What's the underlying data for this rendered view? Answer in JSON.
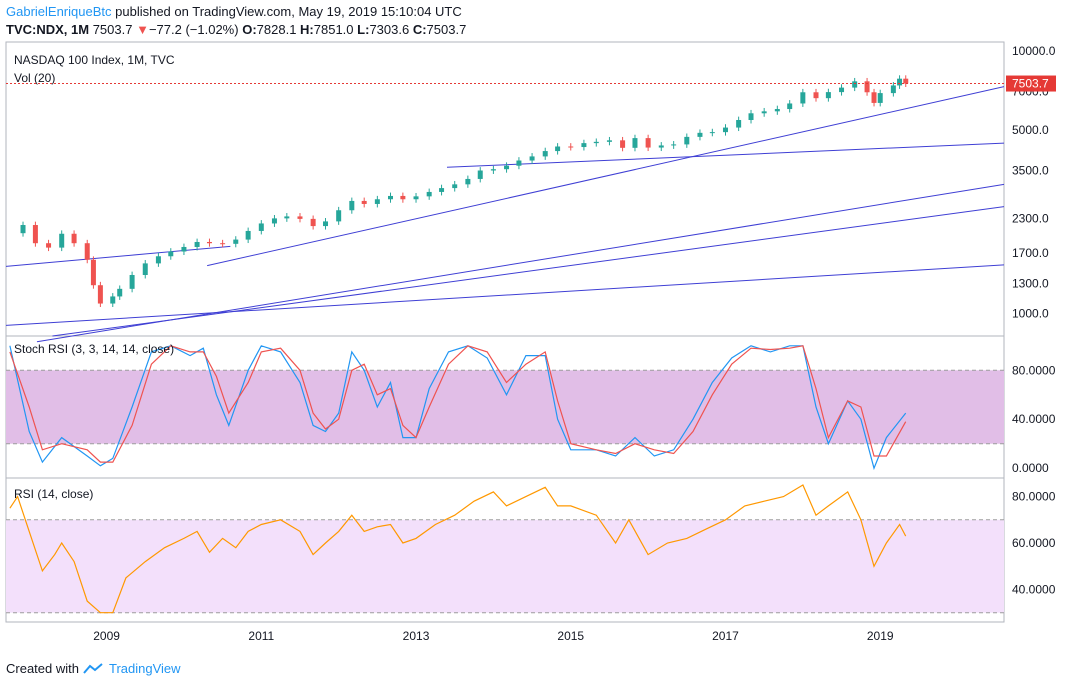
{
  "header": {
    "author": "GabrielEnriqueBtc",
    "published": "published on TradingView.com, May 19, 2019 15:10:04 UTC",
    "symbol": "TVC:NDX, 1M",
    "last": "7503.7",
    "change_icon": "triangle-down-icon",
    "change": "−77.2 (−1.02%)",
    "o_label": "O:",
    "o": "7828.1",
    "h_label": "H:",
    "h": "7851.0",
    "l_label": "L:",
    "l": "7303.6",
    "c_label": "C:",
    "c": "7503.7"
  },
  "footer": {
    "text": "Created with",
    "brand": "TradingView",
    "logo_icon": "tradingview-logo-icon"
  },
  "colors": {
    "up": "#26a69a",
    "down": "#ef5350",
    "trend": "#3f3fd4",
    "stoch_k": "#2196f3",
    "stoch_d": "#ef5350",
    "rsi": "#ff9800",
    "band_stoch": "#e1bee7",
    "band_rsi": "#f3e0fb",
    "price_line": "#e53935"
  },
  "chart_data": [
    {
      "type": "candlestick",
      "title": "NASDAQ 100 Index, 1M, TVC",
      "indicator_label": "Vol (20)",
      "scale": "log",
      "y_ticks": [
        "1000.0",
        "1300.0",
        "1700.0",
        "2300.0",
        "3500.0",
        "5000.0",
        "7000.0",
        "10000.0"
      ],
      "y_tick_values": [
        1000,
        1300,
        1700,
        2300,
        3500,
        5000,
        7000,
        10000
      ],
      "last_price_label": "7503.7",
      "last_price": 7503.7,
      "x_ticks": [
        "2009",
        "2011",
        "2013",
        "2015",
        "2017",
        "2019"
      ],
      "x_tick_values": [
        2009,
        2011,
        2013,
        2015,
        2017,
        2019
      ],
      "x_range": [
        2007.7,
        2020.6
      ],
      "y_range": [
        820,
        10800
      ],
      "monthly_close": [
        {
          "t": 2007.75,
          "v": 2020
        },
        {
          "t": 2007.92,
          "v": 2170
        },
        {
          "t": 2008.08,
          "v": 1850
        },
        {
          "t": 2008.25,
          "v": 1780
        },
        {
          "t": 2008.42,
          "v": 2010
        },
        {
          "t": 2008.58,
          "v": 1850
        },
        {
          "t": 2008.75,
          "v": 1600
        },
        {
          "t": 2008.83,
          "v": 1280
        },
        {
          "t": 2008.92,
          "v": 1090
        },
        {
          "t": 2009.08,
          "v": 1160
        },
        {
          "t": 2009.17,
          "v": 1240
        },
        {
          "t": 2009.33,
          "v": 1400
        },
        {
          "t": 2009.5,
          "v": 1550
        },
        {
          "t": 2009.67,
          "v": 1650
        },
        {
          "t": 2009.83,
          "v": 1720
        },
        {
          "t": 2010.0,
          "v": 1790
        },
        {
          "t": 2010.17,
          "v": 1870
        },
        {
          "t": 2010.33,
          "v": 1850
        },
        {
          "t": 2010.5,
          "v": 1840
        },
        {
          "t": 2010.67,
          "v": 1910
        },
        {
          "t": 2010.83,
          "v": 2060
        },
        {
          "t": 2011.0,
          "v": 2200
        },
        {
          "t": 2011.17,
          "v": 2300
        },
        {
          "t": 2011.33,
          "v": 2340
        },
        {
          "t": 2011.5,
          "v": 2290
        },
        {
          "t": 2011.67,
          "v": 2150
        },
        {
          "t": 2011.83,
          "v": 2240
        },
        {
          "t": 2012.0,
          "v": 2470
        },
        {
          "t": 2012.17,
          "v": 2680
        },
        {
          "t": 2012.33,
          "v": 2610
        },
        {
          "t": 2012.5,
          "v": 2720
        },
        {
          "t": 2012.67,
          "v": 2800
        },
        {
          "t": 2012.83,
          "v": 2720
        },
        {
          "t": 2013.0,
          "v": 2790
        },
        {
          "t": 2013.17,
          "v": 2900
        },
        {
          "t": 2013.33,
          "v": 3000
        },
        {
          "t": 2013.5,
          "v": 3100
        },
        {
          "t": 2013.67,
          "v": 3250
        },
        {
          "t": 2013.83,
          "v": 3500
        },
        {
          "t": 2014.0,
          "v": 3540
        },
        {
          "t": 2014.17,
          "v": 3650
        },
        {
          "t": 2014.33,
          "v": 3820
        },
        {
          "t": 2014.5,
          "v": 3960
        },
        {
          "t": 2014.67,
          "v": 4150
        },
        {
          "t": 2014.83,
          "v": 4320
        },
        {
          "t": 2015.0,
          "v": 4300
        },
        {
          "t": 2015.17,
          "v": 4450
        },
        {
          "t": 2015.33,
          "v": 4500
        },
        {
          "t": 2015.5,
          "v": 4560
        },
        {
          "t": 2015.67,
          "v": 4270
        },
        {
          "t": 2015.83,
          "v": 4650
        },
        {
          "t": 2016.0,
          "v": 4280
        },
        {
          "t": 2016.17,
          "v": 4360
        },
        {
          "t": 2016.33,
          "v": 4400
        },
        {
          "t": 2016.5,
          "v": 4700
        },
        {
          "t": 2016.67,
          "v": 4870
        },
        {
          "t": 2016.83,
          "v": 4900
        },
        {
          "t": 2017.0,
          "v": 5100
        },
        {
          "t": 2017.17,
          "v": 5450
        },
        {
          "t": 2017.33,
          "v": 5780
        },
        {
          "t": 2017.5,
          "v": 5880
        },
        {
          "t": 2017.67,
          "v": 6000
        },
        {
          "t": 2017.83,
          "v": 6300
        },
        {
          "t": 2018.0,
          "v": 6950
        },
        {
          "t": 2018.17,
          "v": 6600
        },
        {
          "t": 2018.33,
          "v": 6960
        },
        {
          "t": 2018.5,
          "v": 7240
        },
        {
          "t": 2018.67,
          "v": 7650
        },
        {
          "t": 2018.83,
          "v": 6950
        },
        {
          "t": 2018.92,
          "v": 6330
        },
        {
          "t": 2019.0,
          "v": 6900
        },
        {
          "t": 2019.17,
          "v": 7380
        },
        {
          "t": 2019.25,
          "v": 7830
        },
        {
          "t": 2019.33,
          "v": 7504
        }
      ]
    },
    {
      "type": "line",
      "title": "Stoch RSI (3, 3, 14, 14, close)",
      "y_ticks": [
        "0.0000",
        "40.0000",
        "80.0000"
      ],
      "y_tick_values": [
        0,
        40,
        80
      ],
      "band": [
        20,
        80
      ],
      "y_range": [
        -8,
        108
      ],
      "series": [
        {
          "key": "k",
          "points": [
            [
              2007.75,
              100
            ],
            [
              2008.0,
              30
            ],
            [
              2008.17,
              5
            ],
            [
              2008.42,
              25
            ],
            [
              2008.75,
              10
            ],
            [
              2008.92,
              2
            ],
            [
              2009.08,
              8
            ],
            [
              2009.33,
              50
            ],
            [
              2009.58,
              95
            ],
            [
              2009.83,
              100
            ],
            [
              2010.08,
              92
            ],
            [
              2010.25,
              98
            ],
            [
              2010.42,
              60
            ],
            [
              2010.58,
              35
            ],
            [
              2010.83,
              80
            ],
            [
              2011.0,
              100
            ],
            [
              2011.25,
              95
            ],
            [
              2011.5,
              70
            ],
            [
              2011.67,
              35
            ],
            [
              2011.83,
              30
            ],
            [
              2012.0,
              45
            ],
            [
              2012.17,
              95
            ],
            [
              2012.33,
              80
            ],
            [
              2012.5,
              50
            ],
            [
              2012.67,
              70
            ],
            [
              2012.83,
              25
            ],
            [
              2013.0,
              25
            ],
            [
              2013.17,
              65
            ],
            [
              2013.42,
              95
            ],
            [
              2013.67,
              100
            ],
            [
              2013.92,
              90
            ],
            [
              2014.17,
              60
            ],
            [
              2014.42,
              92
            ],
            [
              2014.67,
              92
            ],
            [
              2014.83,
              40
            ],
            [
              2015.0,
              15
            ],
            [
              2015.33,
              15
            ],
            [
              2015.58,
              10
            ],
            [
              2015.83,
              25
            ],
            [
              2016.08,
              10
            ],
            [
              2016.33,
              15
            ],
            [
              2016.58,
              40
            ],
            [
              2016.83,
              70
            ],
            [
              2017.08,
              90
            ],
            [
              2017.33,
              100
            ],
            [
              2017.58,
              95
            ],
            [
              2017.83,
              100
            ],
            [
              2018.0,
              100
            ],
            [
              2018.17,
              50
            ],
            [
              2018.33,
              20
            ],
            [
              2018.58,
              55
            ],
            [
              2018.75,
              40
            ],
            [
              2018.92,
              0
            ],
            [
              2019.08,
              25
            ],
            [
              2019.33,
              45
            ]
          ]
        },
        {
          "key": "d",
          "points": [
            [
              2007.75,
              95
            ],
            [
              2008.0,
              50
            ],
            [
              2008.17,
              15
            ],
            [
              2008.42,
              20
            ],
            [
              2008.75,
              15
            ],
            [
              2008.92,
              5
            ],
            [
              2009.08,
              5
            ],
            [
              2009.33,
              35
            ],
            [
              2009.58,
              85
            ],
            [
              2009.83,
              100
            ],
            [
              2010.08,
              95
            ],
            [
              2010.25,
              95
            ],
            [
              2010.42,
              75
            ],
            [
              2010.58,
              45
            ],
            [
              2010.83,
              70
            ],
            [
              2011.0,
              95
            ],
            [
              2011.25,
              98
            ],
            [
              2011.5,
              80
            ],
            [
              2011.67,
              45
            ],
            [
              2011.83,
              32
            ],
            [
              2012.0,
              40
            ],
            [
              2012.17,
              80
            ],
            [
              2012.33,
              85
            ],
            [
              2012.5,
              60
            ],
            [
              2012.67,
              65
            ],
            [
              2012.83,
              35
            ],
            [
              2013.0,
              25
            ],
            [
              2013.17,
              50
            ],
            [
              2013.42,
              85
            ],
            [
              2013.67,
              100
            ],
            [
              2013.92,
              95
            ],
            [
              2014.17,
              70
            ],
            [
              2014.42,
              85
            ],
            [
              2014.67,
              95
            ],
            [
              2014.83,
              55
            ],
            [
              2015.0,
              20
            ],
            [
              2015.33,
              15
            ],
            [
              2015.58,
              12
            ],
            [
              2015.83,
              20
            ],
            [
              2016.08,
              15
            ],
            [
              2016.33,
              12
            ],
            [
              2016.58,
              30
            ],
            [
              2016.83,
              60
            ],
            [
              2017.08,
              85
            ],
            [
              2017.33,
              98
            ],
            [
              2017.58,
              97
            ],
            [
              2017.83,
              98
            ],
            [
              2018.0,
              100
            ],
            [
              2018.17,
              65
            ],
            [
              2018.33,
              25
            ],
            [
              2018.58,
              55
            ],
            [
              2018.75,
              50
            ],
            [
              2018.92,
              10
            ],
            [
              2019.08,
              10
            ],
            [
              2019.33,
              38
            ]
          ]
        }
      ]
    },
    {
      "type": "line",
      "title": "RSI (14, close)",
      "y_ticks": [
        "40.0000",
        "60.0000",
        "80.0000"
      ],
      "y_tick_values": [
        40,
        60,
        80
      ],
      "band": [
        30,
        70
      ],
      "y_range": [
        26,
        88
      ],
      "series": [
        {
          "key": "rsi",
          "points": [
            [
              2007.75,
              75
            ],
            [
              2007.85,
              80
            ],
            [
              2008.0,
              65
            ],
            [
              2008.17,
              48
            ],
            [
              2008.33,
              55
            ],
            [
              2008.42,
              60
            ],
            [
              2008.58,
              52
            ],
            [
              2008.75,
              35
            ],
            [
              2008.92,
              30
            ],
            [
              2009.08,
              30
            ],
            [
              2009.25,
              45
            ],
            [
              2009.5,
              52
            ],
            [
              2009.75,
              58
            ],
            [
              2010.0,
              62
            ],
            [
              2010.17,
              65
            ],
            [
              2010.33,
              56
            ],
            [
              2010.5,
              62
            ],
            [
              2010.67,
              58
            ],
            [
              2010.83,
              65
            ],
            [
              2011.0,
              68
            ],
            [
              2011.25,
              70
            ],
            [
              2011.5,
              65
            ],
            [
              2011.67,
              55
            ],
            [
              2011.83,
              60
            ],
            [
              2012.0,
              65
            ],
            [
              2012.17,
              72
            ],
            [
              2012.33,
              65
            ],
            [
              2012.5,
              67
            ],
            [
              2012.67,
              68
            ],
            [
              2012.83,
              60
            ],
            [
              2013.0,
              62
            ],
            [
              2013.25,
              68
            ],
            [
              2013.5,
              72
            ],
            [
              2013.75,
              78
            ],
            [
              2014.0,
              82
            ],
            [
              2014.17,
              76
            ],
            [
              2014.42,
              80
            ],
            [
              2014.67,
              84
            ],
            [
              2014.83,
              76
            ],
            [
              2015.0,
              76
            ],
            [
              2015.33,
              72
            ],
            [
              2015.58,
              60
            ],
            [
              2015.75,
              70
            ],
            [
              2016.0,
              55
            ],
            [
              2016.25,
              60
            ],
            [
              2016.5,
              62
            ],
            [
              2016.75,
              66
            ],
            [
              2017.0,
              70
            ],
            [
              2017.25,
              76
            ],
            [
              2017.5,
              78
            ],
            [
              2017.75,
              80
            ],
            [
              2018.0,
              85
            ],
            [
              2018.17,
              72
            ],
            [
              2018.33,
              76
            ],
            [
              2018.58,
              82
            ],
            [
              2018.75,
              70
            ],
            [
              2018.92,
              50
            ],
            [
              2019.08,
              60
            ],
            [
              2019.25,
              68
            ],
            [
              2019.33,
              63
            ]
          ]
        }
      ]
    }
  ]
}
